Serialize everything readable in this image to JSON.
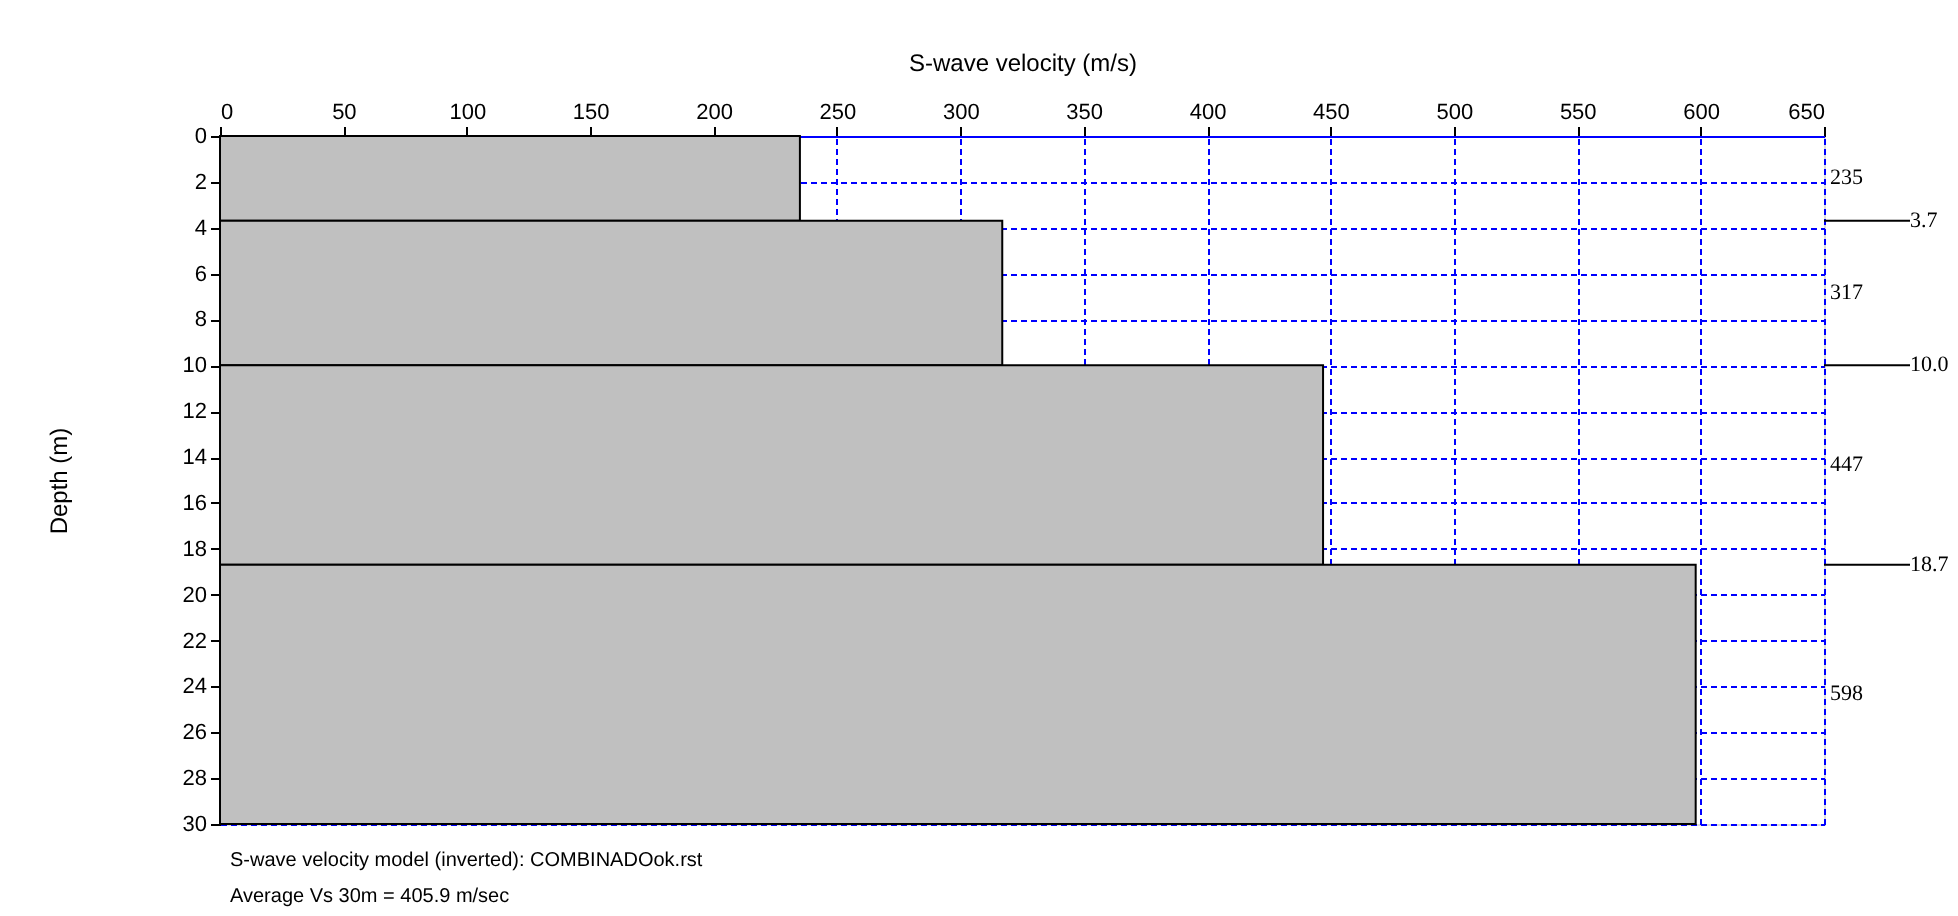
{
  "chart_data": {
    "type": "histogram",
    "orientation": "horizontal",
    "xlabel": "S-wave velocity (m/s)",
    "ylabel": "Depth (m)",
    "bins": [
      0,
      3.7,
      10.0,
      18.7,
      30
    ],
    "values": [
      235,
      317,
      447,
      598
    ],
    "color": "#c0c0c0",
    "xlim": [
      0,
      650
    ],
    "xticks": [
      0,
      50,
      100,
      150,
      200,
      250,
      300,
      350,
      400,
      450,
      500,
      550,
      600,
      650
    ],
    "ylim": [
      30,
      0
    ],
    "yticks": [
      0,
      2,
      4,
      6,
      8,
      10,
      12,
      14,
      16,
      18,
      20,
      22,
      24,
      26,
      28,
      30
    ],
    "grid": true,
    "annotations": [
      "235",
      "317",
      "447",
      "598",
      "3.7",
      "10.0",
      "18.7",
      "S-wave velocity model (inverted): COMBINADOok.rst",
      "Average Vs 30m = 405.9 m/sec"
    ]
  }
}
